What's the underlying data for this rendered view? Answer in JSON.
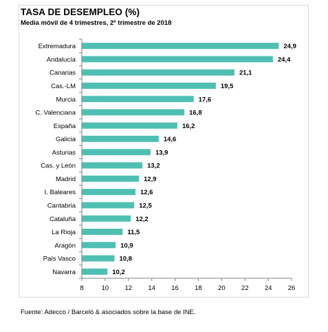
{
  "title": "TASA DE DESEMPLEO (%)",
  "subtitle": "Media móvil de 4 trimestres, 2º trimestre de 2018",
  "source": "Fuente: Adecco / Barceló & asociados sobre la base de INE.",
  "colors": {
    "bar": "#4fbfb3",
    "axis": "#808080"
  },
  "chart_data": {
    "type": "bar",
    "orientation": "horizontal",
    "categories": [
      "Extremadura",
      "Andalucía",
      "Canarias",
      "Cas.-LM",
      "Murcia",
      "C. Valenciana",
      "España",
      "Galicia",
      "Asturias",
      "Cas. y León",
      "Madrid",
      "I. Baleares",
      "Cantabria",
      "Cataluña",
      "La Rioja",
      "Aragón",
      "País Vasco",
      "Navarra"
    ],
    "values": [
      24.9,
      24.4,
      21.1,
      19.5,
      17.6,
      16.8,
      16.2,
      14.6,
      13.9,
      13.2,
      12.9,
      12.6,
      12.5,
      12.2,
      11.5,
      10.9,
      10.8,
      10.2
    ],
    "value_labels": [
      "24,9",
      "24,4",
      "21,1",
      "19,5",
      "17,6",
      "16,8",
      "16,2",
      "14,6",
      "13,9",
      "13,2",
      "12,9",
      "12,6",
      "12,5",
      "12,2",
      "11,5",
      "10,9",
      "10,8",
      "10,2"
    ],
    "xlim": [
      8,
      26
    ],
    "xticks": [
      8,
      10,
      12,
      14,
      16,
      18,
      20,
      22,
      24,
      26
    ],
    "grid": false,
    "legend": "none"
  }
}
